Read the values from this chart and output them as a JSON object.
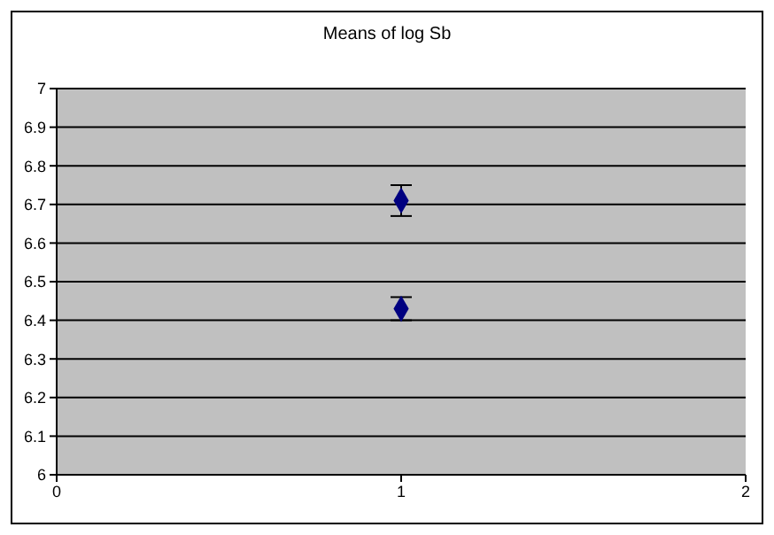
{
  "chart_data": {
    "type": "scatter",
    "title": "Means of log Sb",
    "x": [
      1,
      1
    ],
    "values": [
      6.71,
      6.43
    ],
    "errors": [
      0.04,
      0.03
    ],
    "color": "#000080",
    "xlim": [
      0,
      2
    ],
    "xticks": [
      0,
      1,
      2
    ],
    "ylim": [
      6,
      7
    ],
    "yticks": [
      6,
      6.1,
      6.2,
      6.3,
      6.4,
      6.5,
      6.6,
      6.7,
      6.8,
      6.9,
      7
    ],
    "grid": "y",
    "marker": "diamond"
  }
}
